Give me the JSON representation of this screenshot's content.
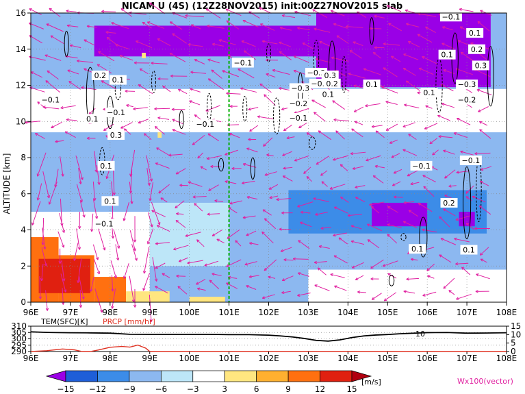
{
  "title": "NICAM U (4S) (12Z28NOV2015) init:00Z27NOV2015 slab",
  "colors": {
    "purple": "#9a00e6",
    "dark_blue": "#1e5ed8",
    "blue": "#3c8ce8",
    "light_blue": "#8cb8f0",
    "pale_blue": "#bde6f8",
    "white": "#ffffff",
    "yellow": "#ffe680",
    "light_orange": "#ffb030",
    "orange": "#ff7010",
    "red": "#e02010",
    "dark_red": "#b00010",
    "magenta": "#e020a0",
    "green": "#00b000",
    "precip_red": "#e03020"
  },
  "chart_data": [
    {
      "type": "heatmap",
      "title": "NICAM U (4S) (12Z28NOV2015) init:00Z27NOV2015 slab",
      "xlabel": "",
      "ylabel": "ALTITUDE [km]",
      "x_ticks": [
        "96E",
        "97E",
        "98E",
        "99E",
        "100E",
        "101E",
        "102E",
        "103E",
        "104E",
        "105E",
        "106E",
        "107E",
        "108E"
      ],
      "x_range": [
        96,
        108
      ],
      "y_ticks": [
        "0",
        "2",
        "4",
        "6",
        "8",
        "10",
        "12",
        "14",
        "16"
      ],
      "y_range": [
        0,
        16
      ],
      "colorbar": {
        "labels": [
          "−15",
          "−12",
          "−9",
          "−6",
          "−3",
          "3",
          "6",
          "9",
          "12",
          "15"
        ],
        "levels": [
          -15,
          -12,
          -9,
          -6,
          -3,
          3,
          6,
          9,
          12,
          15
        ],
        "unit": "[m/s]",
        "colors": [
          "#9a00e6",
          "#1e5ed8",
          "#3c8ce8",
          "#8cb8f0",
          "#bde6f8",
          "#ffffff",
          "#ffe680",
          "#ffb030",
          "#ff7010",
          "#e02010",
          "#b00010"
        ]
      },
      "vector_label": "Wx100(vector)",
      "regions": [
        {
          "x": [
            96,
            108
          ],
          "y": [
            0,
            16
          ],
          "value": -7
        },
        {
          "x": [
            96,
            108
          ],
          "y": [
            9.4,
            11.8
          ],
          "value": -2
        },
        {
          "x": [
            96,
            108
          ],
          "y": [
            12.2,
            16
          ],
          "value": -8
        },
        {
          "x": [
            97.6,
            103.2
          ],
          "y": [
            13.6,
            15.3
          ],
          "value": -16
        },
        {
          "x": [
            103.2,
            107.6
          ],
          "y": [
            11.9,
            16
          ],
          "value": -16
        },
        {
          "x": [
            101,
            105.5
          ],
          "y": [
            6.2,
            8.6
          ],
          "value": -9
        },
        {
          "x": [
            102.5,
            107.5
          ],
          "y": [
            3.8,
            6.2
          ],
          "value": -11
        },
        {
          "x": [
            104.6,
            106.0
          ],
          "y": [
            4.2,
            5.5
          ],
          "value": -16
        },
        {
          "x": [
            106.8,
            107.2
          ],
          "y": [
            4.2,
            5.0
          ],
          "value": -16
        },
        {
          "x": [
            96,
            99
          ],
          "y": [
            0,
            5
          ],
          "value": -2
        },
        {
          "x": [
            99,
            101
          ],
          "y": [
            2,
            5.5
          ],
          "value": -4
        },
        {
          "x": [
            103,
            108
          ],
          "y": [
            0,
            1.8
          ],
          "value": -3
        },
        {
          "x": [
            96.0,
            96.7
          ],
          "y": [
            0,
            3.6
          ],
          "value": 10
        },
        {
          "x": [
            96.7,
            97.6
          ],
          "y": [
            0,
            2.6
          ],
          "value": 10
        },
        {
          "x": [
            97.6,
            98.4
          ],
          "y": [
            0,
            1.4
          ],
          "value": 10
        },
        {
          "x": [
            96.2,
            97.5
          ],
          "y": [
            0.5,
            2.4
          ],
          "value": 12
        },
        {
          "x": [
            98.4,
            99.5
          ],
          "y": [
            0,
            0.6
          ],
          "value": 5
        },
        {
          "x": [
            100.0,
            100.9
          ],
          "y": [
            0,
            0.3
          ],
          "value": 5
        },
        {
          "x": [
            98.8,
            98.9
          ],
          "y": [
            13.5,
            13.8
          ],
          "value": 4
        },
        {
          "x": [
            99.2,
            99.3
          ],
          "y": [
            9.1,
            9.4
          ],
          "value": 4
        }
      ],
      "contour_labels": [
        {
          "text": "−0.1",
          "x": 101.35,
          "y": 13.25
        },
        {
          "text": "−0.1",
          "x": 106.6,
          "y": 15.8
        },
        {
          "text": "0.1",
          "x": 107.2,
          "y": 14.9
        },
        {
          "text": "0.2",
          "x": 107.25,
          "y": 14.0
        },
        {
          "text": "0.1",
          "x": 106.5,
          "y": 13.7
        },
        {
          "text": "0.3",
          "x": 107.35,
          "y": 13.1
        },
        {
          "text": "−0.3",
          "x": 103.2,
          "y": 12.7
        },
        {
          "text": "0.3",
          "x": 103.55,
          "y": 12.55
        },
        {
          "text": "−0.2",
          "x": 103.3,
          "y": 12.1
        },
        {
          "text": "0.2",
          "x": 103.6,
          "y": 12.1
        },
        {
          "text": "0.1",
          "x": 103.5,
          "y": 11.5
        },
        {
          "text": "0.1",
          "x": 104.6,
          "y": 12.05
        },
        {
          "text": "−0.3",
          "x": 102.8,
          "y": 11.85
        },
        {
          "text": "−0.2",
          "x": 102.75,
          "y": 11.0
        },
        {
          "text": "−0.1",
          "x": 102.75,
          "y": 10.2
        },
        {
          "text": "0.1",
          "x": 106.05,
          "y": 11.6
        },
        {
          "text": "−0.3",
          "x": 107.0,
          "y": 12.05
        },
        {
          "text": "−0.2",
          "x": 107.0,
          "y": 11.2
        },
        {
          "text": "0.2",
          "x": 97.75,
          "y": 12.55
        },
        {
          "text": "0.1",
          "x": 98.2,
          "y": 12.3
        },
        {
          "text": "−0.1",
          "x": 96.5,
          "y": 11.2
        },
        {
          "text": "−0.1",
          "x": 98.15,
          "y": 10.5
        },
        {
          "text": "0.1",
          "x": 97.55,
          "y": 10.15
        },
        {
          "text": "−0.1",
          "x": 100.4,
          "y": 9.85
        },
        {
          "text": "0.3",
          "x": 98.15,
          "y": 9.25
        },
        {
          "text": "0.1",
          "x": 97.9,
          "y": 7.55
        },
        {
          "text": "0.1",
          "x": 98.0,
          "y": 5.6
        },
        {
          "text": "−0.1",
          "x": 97.85,
          "y": 4.35
        },
        {
          "text": "−0.1",
          "x": 105.85,
          "y": 7.55
        },
        {
          "text": "−0.1",
          "x": 107.1,
          "y": 7.85
        },
        {
          "text": "0.2",
          "x": 106.55,
          "y": 5.5
        },
        {
          "text": "0.1",
          "x": 105.75,
          "y": 2.95
        },
        {
          "text": "0.1",
          "x": 107.05,
          "y": 2.9
        }
      ],
      "divider_longitude": 101
    },
    {
      "type": "line",
      "title": "",
      "label_temp": "TEM(SFC)[K]",
      "label_prcp": "PRCP [mm/hr]",
      "x_ticks": [
        "96E",
        "97E",
        "98E",
        "99E",
        "100E",
        "101E",
        "102E",
        "103E",
        "104E",
        "105E",
        "106E",
        "107E",
        "108E"
      ],
      "x_range": [
        96,
        108
      ],
      "y_left_ticks": [
        "310",
        "305",
        "300",
        "295",
        "290"
      ],
      "y_left_range": [
        290,
        310
      ],
      "y_right_ticks": [
        "15",
        "10",
        "5",
        "0"
      ],
      "y_right_range": [
        0,
        15
      ],
      "annotation": "10",
      "series": [
        {
          "name": "TEM(SFC)[K]",
          "x": [
            96,
            96.5,
            97,
            97.5,
            98,
            98.5,
            99,
            99.5,
            100,
            100.5,
            101,
            101.5,
            102,
            102.3,
            102.6,
            102.9,
            103.2,
            103.5,
            103.8,
            104.1,
            104.4,
            104.7,
            105,
            105.3,
            105.6,
            106,
            106.5,
            107,
            107.5,
            108
          ],
          "values": [
            305.5,
            305,
            304.8,
            304.7,
            304.5,
            303.6,
            303.5,
            303.5,
            303.5,
            303.5,
            303.3,
            303.3,
            302.9,
            302.3,
            301.5,
            300.3,
            298.8,
            298.2,
            299.2,
            301,
            302.3,
            303,
            303.4,
            304,
            304.4,
            304.9,
            305,
            304.5,
            304.6,
            304.8
          ]
        },
        {
          "name": "PRCP [mm/hr]",
          "x": [
            96,
            96.4,
            96.8,
            97.1,
            97.3,
            97.5,
            97.7,
            98.0,
            98.3,
            98.5,
            98.7,
            98.9,
            99.0,
            100,
            104,
            108
          ],
          "values": [
            0,
            0.5,
            1.5,
            1.0,
            0,
            0,
            0.9,
            2.5,
            3.0,
            2.6,
            3.8,
            2.0,
            0,
            0,
            0,
            0
          ]
        }
      ]
    }
  ]
}
